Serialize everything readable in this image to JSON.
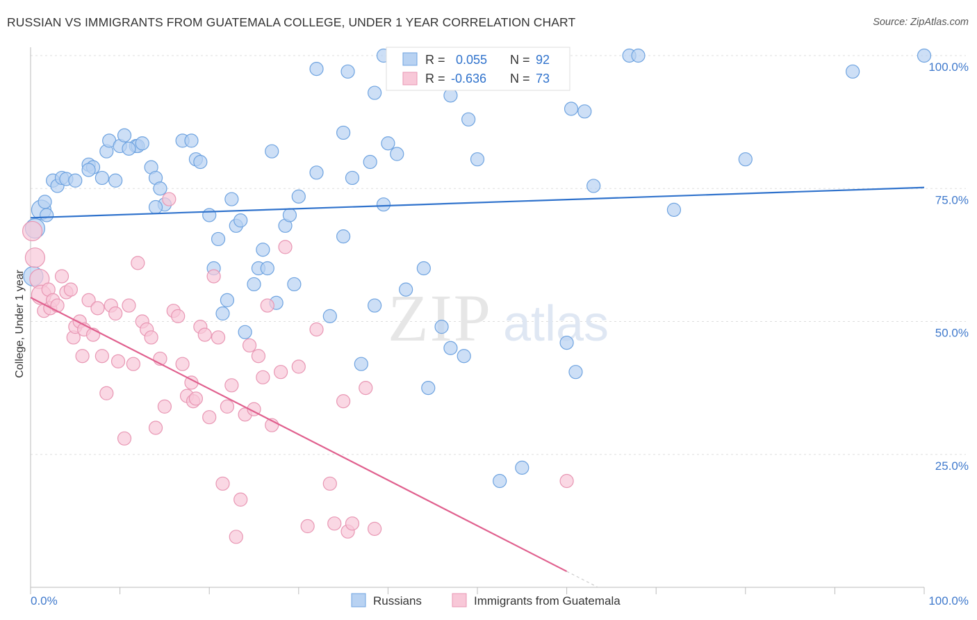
{
  "title": "RUSSIAN VS IMMIGRANTS FROM GUATEMALA COLLEGE, UNDER 1 YEAR CORRELATION CHART",
  "source": "Source: ZipAtlas.com",
  "watermark": {
    "zip": "ZIP",
    "atlas": "atlas"
  },
  "chart_data": {
    "type": "scatter",
    "title": "RUSSIAN VS IMMIGRANTS FROM GUATEMALA COLLEGE, UNDER 1 YEAR CORRELATION CHART",
    "xlabel": "",
    "ylabel": "College, Under 1 year",
    "xlim": [
      0,
      100
    ],
    "ylim": [
      0,
      100
    ],
    "x_tick_labels": [
      "0.0%",
      "100.0%"
    ],
    "y_tick_labels": [
      {
        "value": 100,
        "label": "100.0%"
      },
      {
        "value": 75,
        "label": "75.0%"
      },
      {
        "value": 50,
        "label": "50.0%"
      },
      {
        "value": 25,
        "label": "25.0%"
      }
    ],
    "grid": true,
    "legend_position": "top-center",
    "series": [
      {
        "name": "Russians",
        "color": "#6ea3e0",
        "fill": "#b8d2f2",
        "line_color": "#2f72cc",
        "R": "0.055",
        "N": "92",
        "trend": {
          "x": [
            0,
            100
          ],
          "y": [
            69.5,
            75.2
          ]
        },
        "points": [
          [
            0.3,
            58.5
          ],
          [
            0.5,
            67.5
          ],
          [
            1.2,
            71
          ],
          [
            1.6,
            72.5
          ],
          [
            1.8,
            70
          ],
          [
            2.5,
            76.5
          ],
          [
            3,
            75.5
          ],
          [
            3.5,
            77
          ],
          [
            4,
            76.8
          ],
          [
            5,
            76.5
          ],
          [
            6.5,
            79.5
          ],
          [
            7,
            79
          ],
          [
            6.5,
            78.5
          ],
          [
            8,
            77
          ],
          [
            9.5,
            76.5
          ],
          [
            8.5,
            82
          ],
          [
            8.8,
            84
          ],
          [
            10,
            83
          ],
          [
            10.5,
            85
          ],
          [
            11.8,
            83
          ],
          [
            12,
            83
          ],
          [
            12.5,
            83.5
          ],
          [
            11,
            82.5
          ],
          [
            13.5,
            79
          ],
          [
            14,
            77
          ],
          [
            14.5,
            75
          ],
          [
            15,
            72
          ],
          [
            14,
            71.5
          ],
          [
            17,
            84
          ],
          [
            18,
            84
          ],
          [
            18.5,
            80.5
          ],
          [
            19,
            80
          ],
          [
            20,
            70
          ],
          [
            20.5,
            60
          ],
          [
            21,
            65.5
          ],
          [
            22,
            54
          ],
          [
            22.5,
            73
          ],
          [
            23,
            68
          ],
          [
            23.5,
            69
          ],
          [
            21.5,
            51.5
          ],
          [
            24,
            48
          ],
          [
            25,
            57
          ],
          [
            25.5,
            60
          ],
          [
            26,
            63.5
          ],
          [
            26.5,
            60
          ],
          [
            27,
            82
          ],
          [
            27.5,
            53.5
          ],
          [
            28.5,
            68
          ],
          [
            29,
            70
          ],
          [
            29.5,
            57
          ],
          [
            30,
            73.5
          ],
          [
            32,
            97.5
          ],
          [
            32,
            78
          ],
          [
            33.5,
            51
          ],
          [
            35,
            85.5
          ],
          [
            35,
            66
          ],
          [
            35.5,
            97
          ],
          [
            36,
            77
          ],
          [
            37,
            42
          ],
          [
            38,
            80
          ],
          [
            38.5,
            93
          ],
          [
            38.5,
            53
          ],
          [
            39.5,
            72
          ],
          [
            40,
            83.5
          ],
          [
            39.5,
            100
          ],
          [
            41,
            100
          ],
          [
            41,
            81.5
          ],
          [
            42,
            56
          ],
          [
            42.5,
            100
          ],
          [
            44,
            60
          ],
          [
            44.5,
            37.5
          ],
          [
            46,
            49
          ],
          [
            47,
            92.5
          ],
          [
            47,
            45
          ],
          [
            49,
            88
          ],
          [
            48.5,
            43.5
          ],
          [
            50,
            80.5
          ],
          [
            52.5,
            20
          ],
          [
            55,
            22.5
          ],
          [
            58,
            100
          ],
          [
            58,
            100
          ],
          [
            60,
            46
          ],
          [
            60.5,
            90
          ],
          [
            61,
            40.5
          ],
          [
            62,
            89.5
          ],
          [
            63,
            75.5
          ],
          [
            67,
            100
          ],
          [
            68,
            100
          ],
          [
            72,
            71
          ],
          [
            80,
            80.5
          ],
          [
            92,
            97
          ],
          [
            100,
            100
          ]
        ]
      },
      {
        "name": "Immigrants from Guatemala",
        "color": "#e896b3",
        "fill": "#f8c8d8",
        "line_color": "#e0608e",
        "R": "-0.636",
        "N": "73",
        "trend": {
          "x": [
            0,
            60
          ],
          "y": [
            54.5,
            3
          ]
        },
        "trend_dash": {
          "x": [
            60,
            63.5
          ],
          "y": [
            3,
            0
          ]
        },
        "points": [
          [
            0.2,
            67
          ],
          [
            0.5,
            62
          ],
          [
            1,
            58
          ],
          [
            1.2,
            55
          ],
          [
            1.5,
            52
          ],
          [
            2,
            56
          ],
          [
            2.2,
            52.5
          ],
          [
            2.5,
            54
          ],
          [
            3,
            53
          ],
          [
            3.5,
            58.5
          ],
          [
            4,
            55.5
          ],
          [
            4.5,
            56
          ],
          [
            4.8,
            47
          ],
          [
            5,
            49
          ],
          [
            5.5,
            50
          ],
          [
            5.8,
            43.5
          ],
          [
            6,
            48.5
          ],
          [
            6.5,
            54
          ],
          [
            7,
            47.5
          ],
          [
            7.5,
            52.5
          ],
          [
            8,
            43.5
          ],
          [
            8.5,
            36.5
          ],
          [
            9,
            53
          ],
          [
            9.5,
            51.5
          ],
          [
            9.8,
            42.5
          ],
          [
            10.5,
            28
          ],
          [
            11,
            53
          ],
          [
            11.5,
            42
          ],
          [
            12,
            61
          ],
          [
            12.5,
            50
          ],
          [
            13,
            48.5
          ],
          [
            13.5,
            47
          ],
          [
            14,
            30
          ],
          [
            14.5,
            43
          ],
          [
            15,
            34
          ],
          [
            15.5,
            73
          ],
          [
            16,
            52
          ],
          [
            16.5,
            51
          ],
          [
            17,
            42
          ],
          [
            17.5,
            36
          ],
          [
            18,
            38.5
          ],
          [
            18.2,
            35
          ],
          [
            18.5,
            35.5
          ],
          [
            19,
            49
          ],
          [
            19.5,
            47.5
          ],
          [
            20,
            32
          ],
          [
            20.5,
            58.5
          ],
          [
            21,
            47
          ],
          [
            21.5,
            19.5
          ],
          [
            22,
            34
          ],
          [
            22.5,
            38
          ],
          [
            23,
            9.5
          ],
          [
            23.5,
            16.5
          ],
          [
            24,
            32.5
          ],
          [
            24.5,
            45.5
          ],
          [
            25,
            33.5
          ],
          [
            25.5,
            43.5
          ],
          [
            26,
            39.5
          ],
          [
            26.5,
            53
          ],
          [
            27,
            30.5
          ],
          [
            28,
            40.5
          ],
          [
            28.5,
            64
          ],
          [
            30,
            41.5
          ],
          [
            31,
            11.5
          ],
          [
            32,
            48.5
          ],
          [
            33.5,
            19.5
          ],
          [
            34,
            12
          ],
          [
            35,
            35
          ],
          [
            35.5,
            10.5
          ],
          [
            36,
            12
          ],
          [
            37.5,
            37.5
          ],
          [
            38.5,
            11
          ],
          [
            60,
            20
          ]
        ]
      }
    ]
  }
}
